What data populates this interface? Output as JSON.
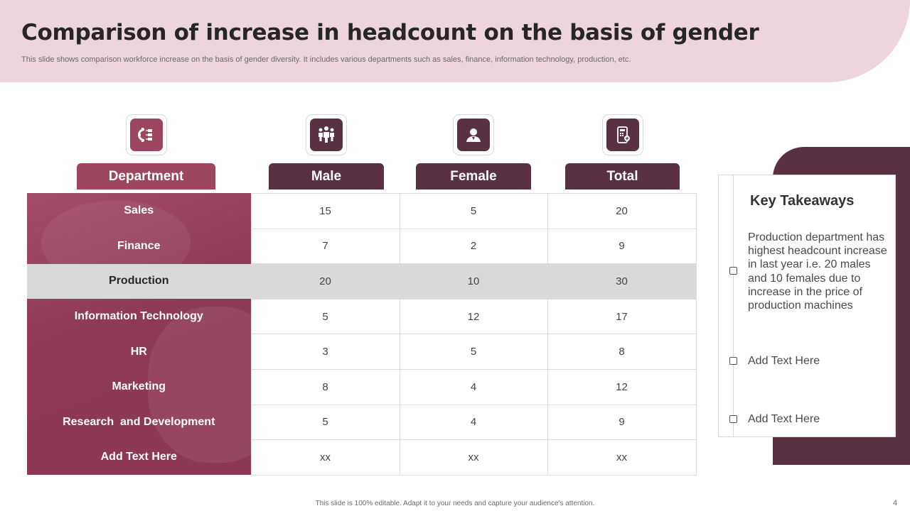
{
  "header": {
    "title": "Comparison of increase in headcount on the basis of gender",
    "subtitle": "This slide shows comparison workforce increase on the basis of gender diversity. It includes various departments such as sales, finance, information technology, production, etc."
  },
  "columns": {
    "department": "Department",
    "male": "Male",
    "female": "Female",
    "total": "Total"
  },
  "icons": {
    "department": "hierarchy-gear-icon",
    "male": "group-people-icon",
    "female": "person-id-icon",
    "total": "mobile-calculator-icon"
  },
  "rows": [
    {
      "department": "Sales",
      "male": "15",
      "female": "5",
      "total": "20"
    },
    {
      "department": "Finance",
      "male": "7",
      "female": "2",
      "total": "9"
    },
    {
      "department": "Production",
      "male": "20",
      "female": "10",
      "total": "30"
    },
    {
      "department": "Information Technology",
      "male": "5",
      "female": "12",
      "total": "17"
    },
    {
      "department": "HR",
      "male": "3",
      "female": "5",
      "total": "8"
    },
    {
      "department": "Marketing",
      "male": "8",
      "female": "4",
      "total": "12"
    },
    {
      "department": "Research  and Development",
      "male": "5",
      "female": "4",
      "total": "9"
    },
    {
      "department": "Add Text Here",
      "male": "xx",
      "female": "xx",
      "total": "xx"
    }
  ],
  "takeaways": {
    "title": "Key Takeaways",
    "items": [
      "Production department has highest headcount increase in last year i.e. 20 males and 10 females due to increase in the price of production machines",
      "Add Text Here",
      "Add Text Here"
    ]
  },
  "footer": {
    "note": "This slide is 100% editable.  Adapt it to your needs and capture your audience's attention.",
    "page_number": "4"
  },
  "colors": {
    "header_band": "#ecd6dc",
    "department_accent": "#9c4660",
    "dark_accent": "#5a3043",
    "highlight_row": "#d9d9d9"
  }
}
